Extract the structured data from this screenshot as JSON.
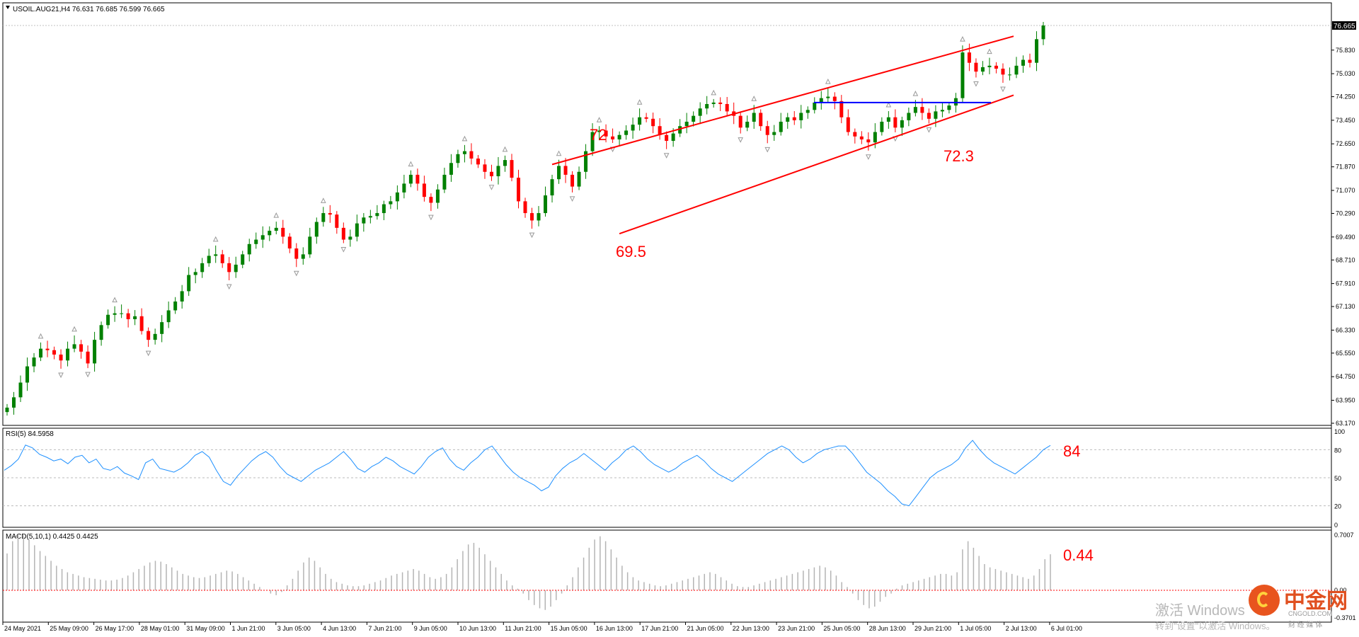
{
  "main_header": "USOIL.AUG21,H4  76.631 76.685 76.599 76.665",
  "current_price_label": "76.665",
  "price_axis_labels": [
    "75.830",
    "75.030",
    "74.250",
    "73.450",
    "72.650",
    "71.870",
    "71.070",
    "70.290",
    "69.490",
    "68.710",
    "67.910",
    "67.130",
    "66.330",
    "65.550",
    "64.750",
    "63.950",
    "63.170"
  ],
  "time_axis_labels": [
    "24 May 2021",
    "25 May 09:00",
    "26 May 17:00",
    "28 May 01:00",
    "31 May 09:00",
    "1 Jun 21:00",
    "3 Jun 05:00",
    "4 Jun 13:00",
    "7 Jun 21:00",
    "9 Jun 05:00",
    "10 Jun 13:00",
    "11 Jun 21:00",
    "15 Jun 05:00",
    "16 Jun 13:00",
    "17 Jun 21:00",
    "21 Jun 05:00",
    "22 Jun 13:00",
    "23 Jun 21:00",
    "25 Jun 05:00",
    "28 Jun 13:00",
    "29 Jun 21:00",
    "1 Jul 05:00",
    "2 Jul 13:00",
    "6 Jul 01:00"
  ],
  "annotations": {
    "peak": "72",
    "low": "69.5",
    "support": "72.3",
    "rsi_value": "84",
    "macd_value": "0.44"
  },
  "rsi": {
    "header": "RSI(5) 84.5958",
    "levels": [
      "100",
      "80",
      "50",
      "20",
      "0"
    ]
  },
  "macd": {
    "header": "MACD(5,10,1) 0.4425 0.4425",
    "top_label": "0.7007",
    "zero_label": "0.00",
    "bottom_label": "-0.3701"
  },
  "watermark": {
    "activate_title": "激活 Windows",
    "activate_hint": "转到\"设置\"以激活 Windows。",
    "brand": "中金网",
    "brand_site": "CNGOLD.COM",
    "brand_media": "财 经 媒 体"
  },
  "colors": {
    "bull": "#008000",
    "bear": "#ff0000",
    "channel": "#ff0000",
    "resistance": "#0000ff",
    "rsi_line": "#1e90ff",
    "macd_hist": "#b4b4b4",
    "macd_zero": "#ff0000"
  },
  "chart_data": {
    "type": "candlestick",
    "symbol": "USOIL.AUG21",
    "timeframe": "H4",
    "ylim": [
      63.0,
      77.1
    ],
    "closes": [
      63.7,
      64.05,
      64.55,
      65.1,
      65.4,
      65.7,
      65.65,
      65.5,
      65.3,
      65.7,
      65.85,
      65.6,
      65.2,
      66.0,
      66.5,
      66.85,
      66.9,
      66.9,
      66.7,
      66.8,
      66.3,
      66.0,
      66.2,
      66.6,
      67.0,
      67.3,
      67.65,
      68.2,
      68.3,
      68.6,
      68.85,
      68.9,
      68.6,
      68.3,
      68.55,
      68.9,
      69.25,
      69.4,
      69.55,
      69.7,
      69.8,
      69.5,
      69.1,
      68.75,
      68.9,
      69.5,
      70.0,
      70.3,
      70.25,
      69.8,
      69.4,
      69.5,
      69.95,
      70.15,
      70.2,
      70.3,
      70.6,
      70.7,
      71.0,
      71.3,
      71.6,
      71.3,
      70.85,
      70.65,
      71.1,
      71.6,
      72.0,
      72.3,
      72.4,
      72.15,
      71.95,
      71.7,
      71.55,
      71.9,
      72.1,
      71.5,
      70.7,
      70.3,
      70.05,
      70.3,
      70.9,
      71.45,
      71.9,
      71.6,
      71.2,
      71.7,
      72.4,
      73.05,
      73.1,
      72.9,
      72.8,
      72.95,
      73.1,
      73.3,
      73.55,
      73.5,
      73.25,
      72.95,
      72.75,
      73.0,
      73.25,
      73.4,
      73.6,
      73.85,
      74.0,
      74.05,
      74.0,
      73.75,
      73.6,
      73.2,
      73.4,
      73.7,
      73.25,
      72.95,
      73.05,
      73.4,
      73.55,
      73.45,
      73.7,
      73.8,
      74.05,
      74.2
    ],
    "tail_closes": [
      74.25,
      74.1,
      73.55,
      73.05,
      72.9,
      72.8,
      72.7,
      73.05,
      73.4,
      73.55,
      73.2,
      73.45,
      73.7,
      73.9,
      73.7,
      73.5,
      73.75,
      73.8,
      73.95,
      74.2,
      75.75,
      75.4,
      75.1,
      75.25,
      75.3,
      75.2,
      75.0,
      75.0,
      75.3,
      75.5,
      75.4,
      76.2,
      76.665
    ],
    "rsi": [
      58,
      63,
      70,
      85,
      82,
      75,
      72,
      68,
      70,
      65,
      72,
      74,
      66,
      70,
      60,
      58,
      62,
      55,
      52,
      48,
      66,
      70,
      60,
      58,
      56,
      60,
      66,
      74,
      78,
      72,
      58,
      46,
      42,
      52,
      60,
      68,
      74,
      78,
      72,
      62,
      54,
      50,
      46,
      52,
      58,
      62,
      66,
      72,
      78,
      70,
      60,
      56,
      62,
      66,
      72,
      68,
      62,
      58,
      54,
      62,
      72,
      78,
      82,
      70,
      62,
      58,
      66,
      72,
      80,
      84,
      74,
      64,
      56,
      50,
      46,
      42,
      36,
      40,
      52,
      60,
      66,
      70,
      76,
      70,
      64,
      58,
      66,
      72,
      80,
      84,
      78,
      70,
      64,
      60,
      56,
      60,
      66,
      70,
      74,
      68,
      60,
      54,
      50,
      46,
      52,
      58,
      64,
      70,
      76,
      80,
      84,
      80,
      72,
      66,
      70,
      76,
      80,
      82,
      84,
      84,
      76,
      66,
      56,
      50,
      44,
      36,
      30,
      22,
      20,
      30,
      40,
      50,
      56,
      60,
      64,
      70,
      82,
      90,
      80,
      72,
      66,
      62,
      58,
      54,
      60,
      66,
      72,
      80,
      84.6
    ],
    "macd": [
      0.45,
      0.6,
      0.68,
      0.68,
      0.62,
      0.55,
      0.48,
      0.42,
      0.36,
      0.3,
      0.26,
      0.22,
      0.2,
      0.18,
      0.16,
      0.15,
      0.14,
      0.13,
      0.12,
      0.12,
      0.13,
      0.15,
      0.18,
      0.22,
      0.26,
      0.3,
      0.34,
      0.36,
      0.35,
      0.32,
      0.28,
      0.24,
      0.2,
      0.18,
      0.16,
      0.15,
      0.16,
      0.18,
      0.2,
      0.22,
      0.24,
      0.23,
      0.2,
      0.16,
      0.12,
      0.08,
      0.04,
      0.0,
      -0.04,
      -0.06,
      -0.02,
      0.06,
      0.14,
      0.24,
      0.34,
      0.4,
      0.36,
      0.28,
      0.2,
      0.14,
      0.1,
      0.08,
      0.06,
      0.05,
      0.05,
      0.06,
      0.08,
      0.1,
      0.12,
      0.15,
      0.18,
      0.2,
      0.22,
      0.24,
      0.26,
      0.24,
      0.2,
      0.16,
      0.14,
      0.16,
      0.2,
      0.28,
      0.38,
      0.48,
      0.56,
      0.58,
      0.52,
      0.44,
      0.36,
      0.28,
      0.2,
      0.12,
      0.06,
      0.02,
      -0.04,
      -0.12,
      -0.18,
      -0.22,
      -0.24,
      -0.2,
      -0.12,
      -0.04,
      0.06,
      0.16,
      0.28,
      0.4,
      0.52,
      0.62,
      0.66,
      0.6,
      0.5,
      0.4,
      0.3,
      0.22,
      0.16,
      0.12,
      0.1,
      0.08,
      0.06,
      0.05,
      0.06,
      0.08,
      0.1,
      0.12,
      0.14,
      0.16,
      0.18,
      0.2,
      0.22,
      0.2,
      0.16,
      0.12,
      0.08,
      0.05,
      0.04,
      0.04,
      0.06,
      0.08,
      0.1,
      0.12,
      0.14,
      0.16,
      0.18,
      0.2,
      0.22,
      0.24,
      0.26,
      0.28,
      0.3,
      0.28,
      0.24,
      0.18,
      0.1,
      0.04,
      -0.04,
      -0.12,
      -0.18,
      -0.22,
      -0.2,
      -0.14,
      -0.08,
      -0.04,
      0.02,
      0.06,
      0.08,
      0.1,
      0.12,
      0.14,
      0.16,
      0.18,
      0.2,
      0.2,
      0.18,
      0.22,
      0.5,
      0.6,
      0.52,
      0.42,
      0.32,
      0.28,
      0.26,
      0.24,
      0.22,
      0.2,
      0.18,
      0.16,
      0.14,
      0.18,
      0.26,
      0.38,
      0.44
    ],
    "channel_upper": [
      {
        "x": "15 Jun 2021",
        "y": 71.95
      },
      {
        "x": "2 Jul 2021",
        "y": 76.3
      }
    ],
    "channel_lower": [
      {
        "x": "17 Jun 2021",
        "y": 69.6
      },
      {
        "x": "2 Jul 2021",
        "y": 74.3
      }
    ],
    "resistance_level": 74.05,
    "rsi_range": [
      0,
      100
    ],
    "macd_range": [
      -0.3701,
      0.7007
    ]
  }
}
